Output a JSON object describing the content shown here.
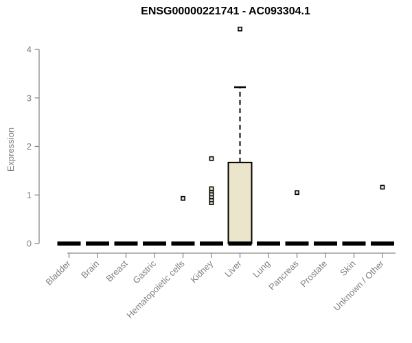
{
  "chart_data": {
    "type": "box",
    "title": "ENSG00000221741 - AC093304.1",
    "xlabel": "",
    "ylabel": "Expression",
    "ylim": [
      0,
      4.6
    ],
    "yticks": [
      0,
      1,
      2,
      3,
      4
    ],
    "grid": false,
    "legend": false,
    "categories": [
      "Bladder",
      "Brain",
      "Breast",
      "Gastric",
      "Hematopoietic cells",
      "Kidney",
      "Liver",
      "Lung",
      "Pancreas",
      "Prostate",
      "Skin",
      "Unknown / Other"
    ],
    "boxes": [
      {
        "category": "Bladder",
        "q1": 0,
        "median": 0,
        "q3": 0,
        "whisker_low": 0,
        "whisker_high": 0,
        "outliers": []
      },
      {
        "category": "Brain",
        "q1": 0,
        "median": 0,
        "q3": 0,
        "whisker_low": 0,
        "whisker_high": 0,
        "outliers": []
      },
      {
        "category": "Breast",
        "q1": 0,
        "median": 0,
        "q3": 0,
        "whisker_low": 0,
        "whisker_high": 0,
        "outliers": []
      },
      {
        "category": "Gastric",
        "q1": 0,
        "median": 0,
        "q3": 0,
        "whisker_low": 0,
        "whisker_high": 0,
        "outliers": []
      },
      {
        "category": "Hematopoietic cells",
        "q1": 0,
        "median": 0,
        "q3": 0,
        "whisker_low": 0,
        "whisker_high": 0,
        "outliers": [
          0.93
        ]
      },
      {
        "category": "Kidney",
        "q1": 0,
        "median": 0,
        "q3": 0,
        "whisker_low": 0,
        "whisker_high": 0,
        "outliers": [
          0.84,
          0.9,
          0.96,
          1.02,
          1.08,
          1.13,
          1.75
        ]
      },
      {
        "category": "Liver",
        "q1": 0,
        "median": 0,
        "q3": 1.67,
        "whisker_low": 0,
        "whisker_high": 3.22,
        "outliers": [
          4.42
        ]
      },
      {
        "category": "Lung",
        "q1": 0,
        "median": 0,
        "q3": 0,
        "whisker_low": 0,
        "whisker_high": 0,
        "outliers": []
      },
      {
        "category": "Pancreas",
        "q1": 0,
        "median": 0,
        "q3": 0,
        "whisker_low": 0,
        "whisker_high": 0,
        "outliers": [
          1.05
        ]
      },
      {
        "category": "Prostate",
        "q1": 0,
        "median": 0,
        "q3": 0,
        "whisker_low": 0,
        "whisker_high": 0,
        "outliers": []
      },
      {
        "category": "Skin",
        "q1": 0,
        "median": 0,
        "q3": 0,
        "whisker_low": 0,
        "whisker_high": 0,
        "outliers": []
      },
      {
        "category": "Unknown / Other",
        "q1": 0,
        "median": 0,
        "q3": 0,
        "whisker_low": 0,
        "whisker_high": 0,
        "outliers": [
          1.16
        ]
      }
    ],
    "colors": {
      "box_fill": "#EAE5CB",
      "box_border": "#000000",
      "median": "#000000",
      "axis": "#888888",
      "tick_labels": "#808080",
      "title": "#000000"
    }
  }
}
